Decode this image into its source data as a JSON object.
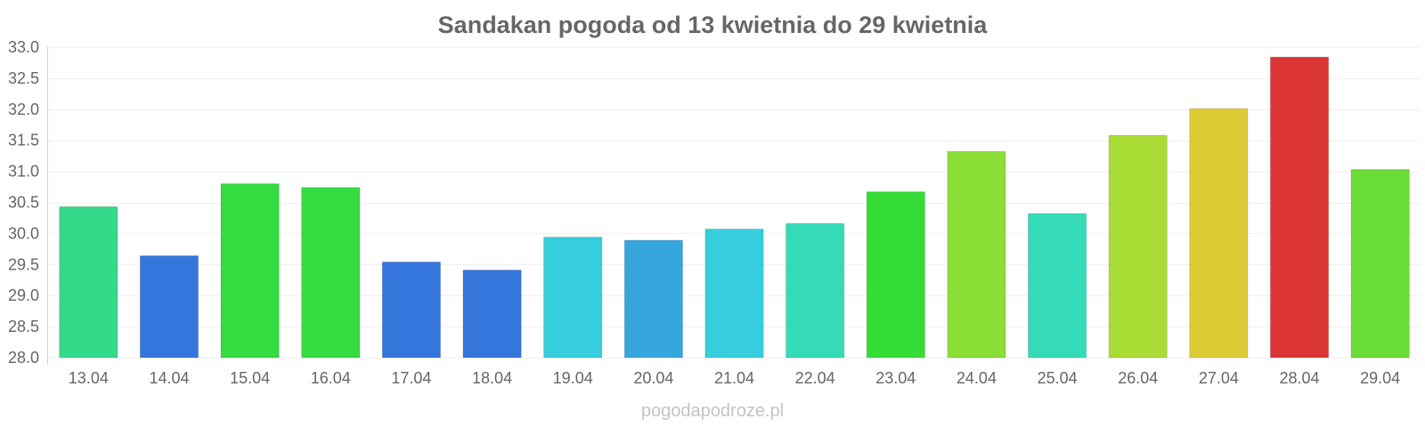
{
  "chart_data": {
    "type": "bar",
    "title": "Sandakan pogoda od 13 kwietnia do 29 kwietnia",
    "xlabel": "",
    "ylabel": "",
    "ylim": [
      28.0,
      33.0
    ],
    "yticks": [
      "28.0",
      "28.5",
      "29.0",
      "29.5",
      "30.0",
      "30.5",
      "31.0",
      "31.5",
      "32.0",
      "32.5",
      "33.0"
    ],
    "categories": [
      "13.04",
      "14.04",
      "15.04",
      "16.04",
      "17.04",
      "18.04",
      "19.04",
      "20.04",
      "21.04",
      "22.04",
      "23.04",
      "24.04",
      "25.04",
      "26.04",
      "27.04",
      "28.04",
      "29.04"
    ],
    "values": [
      30.43,
      29.64,
      30.8,
      30.74,
      29.54,
      29.41,
      29.94,
      29.89,
      30.07,
      30.16,
      30.67,
      31.32,
      30.32,
      31.58,
      32.01,
      32.84,
      31.03
    ],
    "colors": [
      "#34d98a",
      "#3576dc",
      "#35dc41",
      "#35dc41",
      "#3576dc",
      "#3576dc",
      "#36cedc",
      "#36a7dc",
      "#36cedc",
      "#35dbb6",
      "#35dc35",
      "#8ade35",
      "#35dbb6",
      "#a9dc35",
      "#dccb35",
      "#dc3535",
      "#69dc35"
    ],
    "grid": true,
    "legend": "none"
  },
  "footer": {
    "watermark": "pogodapodroze.pl"
  }
}
